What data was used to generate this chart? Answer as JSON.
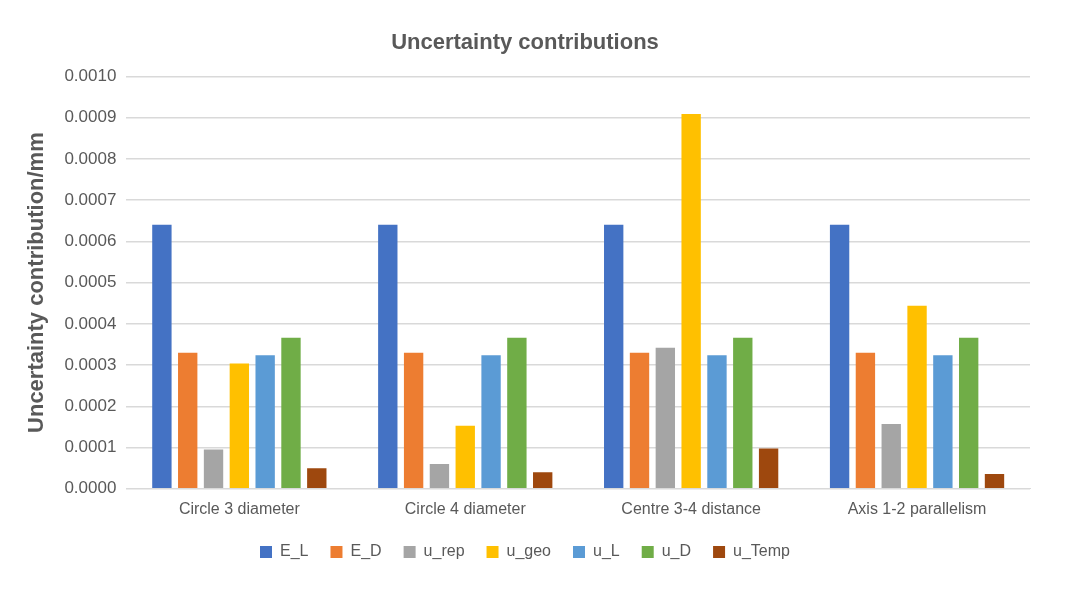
{
  "chart_data": {
    "type": "bar",
    "title": "Uncertainty contributions",
    "ylabel": "Uncertainty contribution/mm",
    "categories": [
      "Circle 3 diameter",
      "Circle 4 diameter",
      "Centre 3-4 distance",
      "Axis 1-2 parallelism"
    ],
    "series": [
      {
        "name": "E_L",
        "color": "#4472c4",
        "values": [
          0.00064,
          0.00064,
          0.00064,
          0.00064
        ]
      },
      {
        "name": "E_D",
        "color": "#ed7d31",
        "values": [
          0.00033,
          0.00033,
          0.00033,
          0.00033
        ]
      },
      {
        "name": "u_rep",
        "color": "#a5a5a5",
        "values": [
          9.5e-05,
          6e-05,
          0.000342,
          0.000157
        ]
      },
      {
        "name": "u_geo",
        "color": "#ffc000",
        "values": [
          0.000304,
          0.000153,
          0.000909,
          0.000444
        ]
      },
      {
        "name": "u_L",
        "color": "#5b9bd5",
        "values": [
          0.000324,
          0.000324,
          0.000324,
          0.000324
        ]
      },
      {
        "name": "u_D",
        "color": "#70ad47",
        "values": [
          0.000366,
          0.000366,
          0.000366,
          0.000366
        ]
      },
      {
        "name": "u_Temp",
        "color": "#9e480e",
        "values": [
          5e-05,
          4e-05,
          9.8e-05,
          3.6e-05
        ]
      }
    ],
    "ylim": [
      0,
      0.001
    ],
    "yticks": [
      {
        "value": 0,
        "label": "0.0000"
      },
      {
        "value": 0.0001,
        "label": "0.0001"
      },
      {
        "value": 0.0002,
        "label": "0.0002"
      },
      {
        "value": 0.0003,
        "label": "0.0003"
      },
      {
        "value": 0.0004,
        "label": "0.0004"
      },
      {
        "value": 0.0005,
        "label": "0.0005"
      },
      {
        "value": 0.0006,
        "label": "0.0006"
      },
      {
        "value": 0.0007,
        "label": "0.0007"
      },
      {
        "value": 0.0008,
        "label": "0.0008"
      },
      {
        "value": 0.0009,
        "label": "0.0009"
      },
      {
        "value": 0.001,
        "label": "0.0010"
      }
    ],
    "grid": "y",
    "legend": "bottom"
  }
}
